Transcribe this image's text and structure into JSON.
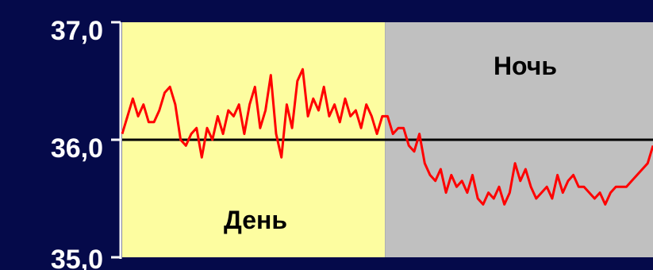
{
  "chart_data": {
    "type": "line",
    "ylim": [
      35.0,
      37.0
    ],
    "yticks": [
      "37,0",
      "36,0",
      "35,0"
    ],
    "reference_line": 36.0,
    "regions": [
      {
        "label": "День",
        "x_range": [
          0,
          0.495
        ],
        "color": "#fdfda0"
      },
      {
        "label": "Ночь",
        "x_range": [
          0.495,
          1.0
        ],
        "color": "#c0c0c0"
      }
    ],
    "series": [
      {
        "color": "#ff0000",
        "x": [
          0,
          0.01,
          0.02,
          0.03,
          0.04,
          0.05,
          0.06,
          0.07,
          0.08,
          0.09,
          0.1,
          0.11,
          0.12,
          0.13,
          0.14,
          0.15,
          0.16,
          0.17,
          0.18,
          0.19,
          0.2,
          0.21,
          0.22,
          0.23,
          0.24,
          0.25,
          0.26,
          0.27,
          0.28,
          0.29,
          0.3,
          0.31,
          0.32,
          0.33,
          0.34,
          0.35,
          0.36,
          0.37,
          0.38,
          0.39,
          0.4,
          0.41,
          0.42,
          0.43,
          0.44,
          0.45,
          0.46,
          0.47,
          0.48,
          0.49,
          0.5,
          0.51,
          0.52,
          0.53,
          0.54,
          0.55,
          0.56,
          0.57,
          0.58,
          0.59,
          0.6,
          0.61,
          0.62,
          0.63,
          0.64,
          0.65,
          0.66,
          0.67,
          0.68,
          0.69,
          0.7,
          0.71,
          0.72,
          0.73,
          0.74,
          0.75,
          0.76,
          0.77,
          0.78,
          0.79,
          0.8,
          0.81,
          0.82,
          0.83,
          0.84,
          0.85,
          0.86,
          0.87,
          0.88,
          0.89,
          0.9,
          0.91,
          0.92,
          0.93,
          0.94,
          0.95,
          0.96,
          0.97,
          0.98,
          0.99,
          1.0
        ],
        "y": [
          36.05,
          36.2,
          36.35,
          36.2,
          36.3,
          36.15,
          36.15,
          36.25,
          36.4,
          36.45,
          36.3,
          36.0,
          35.95,
          36.05,
          36.1,
          35.85,
          36.1,
          36.0,
          36.2,
          36.05,
          36.25,
          36.2,
          36.3,
          36.05,
          36.3,
          36.45,
          36.1,
          36.25,
          36.55,
          36.05,
          35.85,
          36.3,
          36.1,
          36.5,
          36.6,
          36.2,
          36.35,
          36.25,
          36.45,
          36.2,
          36.3,
          36.15,
          36.35,
          36.2,
          36.25,
          36.1,
          36.3,
          36.2,
          36.05,
          36.2,
          36.2,
          36.05,
          36.1,
          36.1,
          35.95,
          35.9,
          36.05,
          35.8,
          35.7,
          35.65,
          35.75,
          35.55,
          35.7,
          35.6,
          35.65,
          35.55,
          35.7,
          35.5,
          35.45,
          35.55,
          35.5,
          35.6,
          35.45,
          35.55,
          35.8,
          35.65,
          35.75,
          35.6,
          35.5,
          35.55,
          35.6,
          35.5,
          35.7,
          35.55,
          35.65,
          35.7,
          35.6,
          35.6,
          35.55,
          35.5,
          35.55,
          35.45,
          35.55,
          35.6,
          35.6,
          35.6,
          35.65,
          35.7,
          35.75,
          35.8,
          35.95
        ]
      }
    ],
    "colors": {
      "background": "#050a4a",
      "line": "#ff0000",
      "reference": "#000000",
      "axis": "#ffffff"
    }
  }
}
